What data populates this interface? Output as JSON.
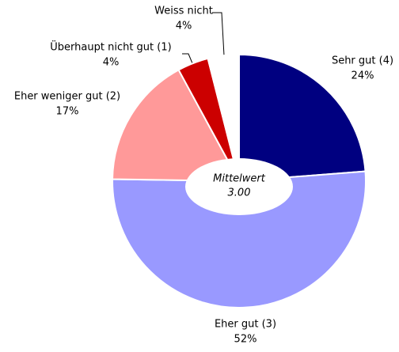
{
  "chart_data": {
    "type": "pie",
    "categories": [
      "Sehr gut (4)",
      "Eher gut (3)",
      "Eher weniger gut (2)",
      "Überhaupt nicht gut (1)",
      "Weiss nicht"
    ],
    "values": [
      24,
      52,
      17,
      4,
      4
    ],
    "value_labels": [
      "24%",
      "52%",
      "17%",
      "4%",
      "4%"
    ],
    "colors": [
      "#000080",
      "#9999ff",
      "#ff9999",
      "#cc0000",
      "#ffffff"
    ],
    "annotation_title": "Mittelwert",
    "annotation_value": "3.00"
  }
}
